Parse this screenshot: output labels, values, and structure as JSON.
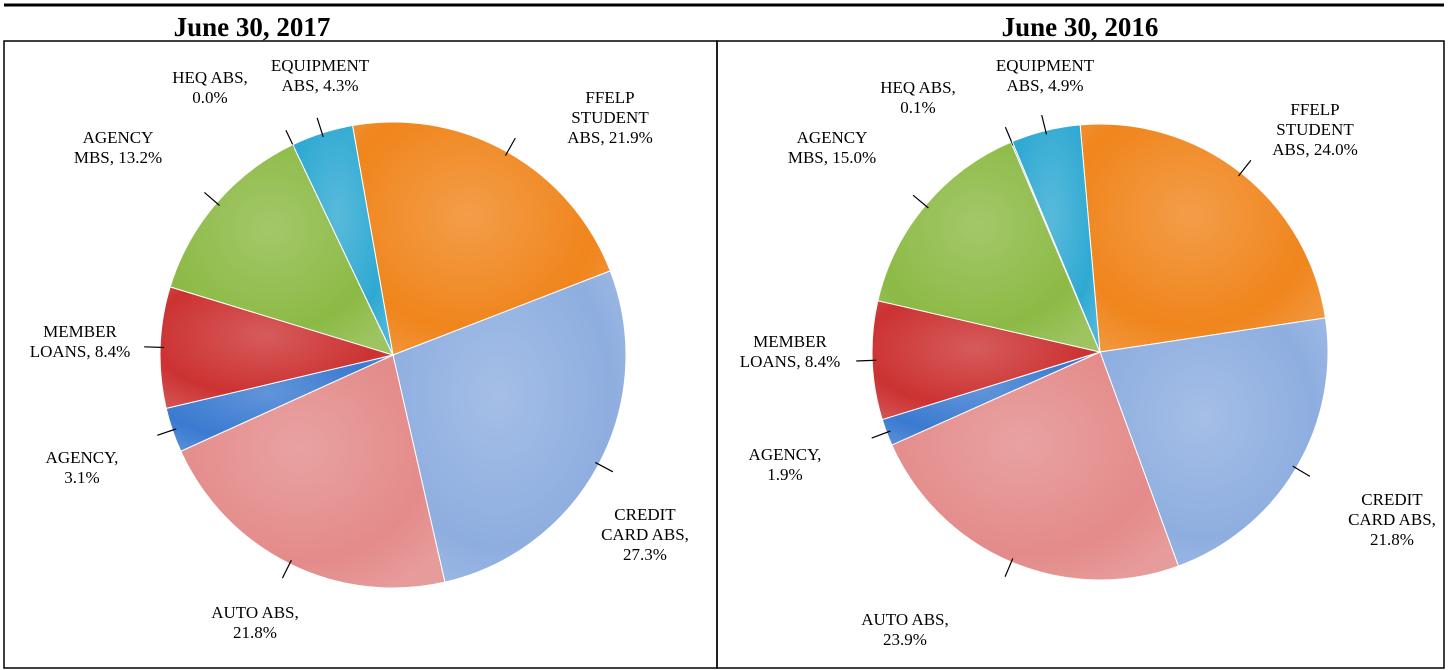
{
  "chart_data": [
    {
      "type": "pie",
      "title": "June 30, 2017",
      "categories": [
        "FFELP STUDENT ABS,",
        "CREDIT CARD ABS,",
        "AUTO ABS,",
        "AGENCY,",
        "MEMBER LOANS,",
        "AGENCY MBS,",
        "HEQ ABS,",
        "EQUIPMENT ABS,"
      ],
      "values": [
        21.9,
        27.3,
        21.8,
        3.1,
        8.4,
        13.2,
        0.0,
        4.3
      ],
      "value_labels": [
        "21.9%",
        "27.3%",
        "21.8%",
        "3.1%",
        "8.4%",
        "13.2%",
        "0.0%",
        "4.3%"
      ],
      "colors": [
        "#f0851c",
        "#8eaee0",
        "#e38b8a",
        "#3a7ad0",
        "#cc3232",
        "#8cba45",
        "#7c5fa2",
        "#2fa9d2"
      ]
    },
    {
      "type": "pie",
      "title": "June 30, 2016",
      "categories": [
        "FFELP STUDENT ABS,",
        "CREDIT CARD ABS,",
        "AUTO ABS,",
        "AGENCY,",
        "MEMBER LOANS,",
        "AGENCY MBS,",
        "HEQ ABS,",
        "EQUIPMENT ABS,"
      ],
      "values": [
        24.0,
        21.8,
        23.9,
        1.9,
        8.4,
        15.0,
        0.1,
        4.9
      ],
      "value_labels": [
        "24.0%",
        "21.8%",
        "23.9%",
        "1.9%",
        "8.4%",
        "15.0%",
        "0.1%",
        "4.9%"
      ],
      "colors": [
        "#f0851c",
        "#8eaee0",
        "#e38b8a",
        "#3a7ad0",
        "#cc3232",
        "#8cba45",
        "#7c5fa2",
        "#2fa9d2"
      ]
    }
  ]
}
